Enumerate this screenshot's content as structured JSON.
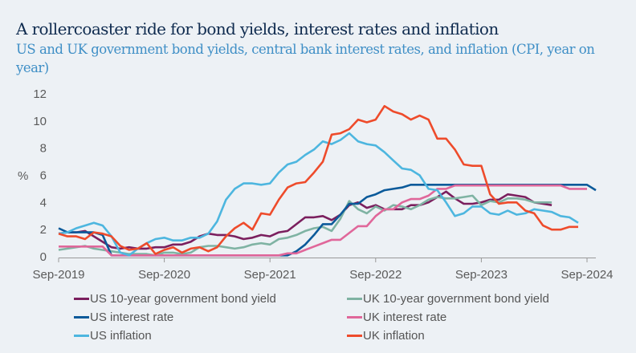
{
  "chart_data": {
    "type": "line",
    "title": "A rollercoaster ride for bond yields, interest rates and inflation",
    "subtitle": "US and UK government bond yields, central bank interest rates, and inflation (CPI, year on year)",
    "xlabel": "",
    "ylabel": "%",
    "ylim": [
      0,
      12
    ],
    "yticks": [
      "0",
      "2",
      "4",
      "6",
      "8",
      "10",
      "12"
    ],
    "xticks": [
      "Sep-2019",
      "Sep-2020",
      "Sep-2021",
      "Sep-2022",
      "Sep-2023",
      "Sep-2024"
    ],
    "x_start": "Sep-2019",
    "x_frequency": "monthly",
    "grid": false,
    "legend_position": "bottom",
    "series": [
      {
        "name": "US 10-year government bond yield",
        "color": "#7b1f5e",
        "values": [
          1.7,
          1.8,
          1.8,
          1.9,
          1.5,
          1.1,
          0.7,
          0.6,
          0.7,
          0.6,
          0.6,
          0.7,
          0.7,
          0.9,
          0.9,
          1.1,
          1.5,
          1.7,
          1.6,
          1.6,
          1.5,
          1.3,
          1.4,
          1.6,
          1.5,
          1.8,
          1.9,
          2.4,
          2.9,
          2.9,
          3.0,
          2.7,
          3.1,
          3.8,
          4.0,
          3.6,
          3.8,
          3.5,
          3.5,
          3.5,
          3.8,
          3.8,
          4.0,
          4.4,
          4.8,
          4.3,
          3.9,
          3.9,
          4.0,
          4.2,
          4.2,
          4.6,
          4.5,
          4.4,
          4.0,
          3.9,
          3.8
        ]
      },
      {
        "name": "UK 10-year government bond yield",
        "color": "#7fb3a3",
        "values": [
          0.5,
          0.6,
          0.7,
          0.8,
          0.6,
          0.5,
          0.4,
          0.3,
          0.2,
          0.2,
          0.2,
          0.1,
          0.3,
          0.3,
          0.2,
          0.3,
          0.7,
          0.8,
          0.8,
          0.7,
          0.6,
          0.7,
          0.9,
          1.0,
          0.9,
          1.3,
          1.4,
          1.6,
          1.9,
          2.1,
          2.2,
          1.9,
          2.8,
          4.1,
          3.5,
          3.2,
          3.7,
          3.4,
          3.8,
          3.7,
          3.5,
          3.8,
          4.2,
          4.4,
          4.3,
          4.3,
          4.4,
          4.5,
          3.8,
          4.1,
          4.0,
          4.3,
          4.3,
          4.2,
          4.0,
          4.0,
          4.0
        ]
      },
      {
        "name": "US interest rate",
        "color": "#0b5a9a",
        "values": [
          2.1,
          1.8,
          1.8,
          1.8,
          1.8,
          1.6,
          0.1,
          0.1,
          0.1,
          0.1,
          0.1,
          0.1,
          0.1,
          0.1,
          0.1,
          0.1,
          0.1,
          0.1,
          0.1,
          0.1,
          0.1,
          0.1,
          0.1,
          0.1,
          0.1,
          0.1,
          0.1,
          0.4,
          0.9,
          1.6,
          2.4,
          2.4,
          3.1,
          3.9,
          3.9,
          4.4,
          4.6,
          4.9,
          5.0,
          5.1,
          5.3,
          5.3,
          5.3,
          5.3,
          5.3,
          5.3,
          5.3,
          5.3,
          5.3,
          5.3,
          5.3,
          5.3,
          5.3,
          5.3,
          5.3,
          5.3,
          5.3,
          5.3,
          5.3,
          5.3,
          5.3,
          4.9
        ]
      },
      {
        "name": "UK interest rate",
        "color": "#e0679a",
        "values": [
          0.75,
          0.75,
          0.75,
          0.75,
          0.75,
          0.75,
          0.1,
          0.1,
          0.1,
          0.1,
          0.1,
          0.1,
          0.1,
          0.1,
          0.1,
          0.1,
          0.1,
          0.1,
          0.1,
          0.1,
          0.1,
          0.1,
          0.1,
          0.1,
          0.1,
          0.1,
          0.25,
          0.25,
          0.5,
          0.75,
          1.0,
          1.25,
          1.25,
          1.75,
          2.25,
          2.25,
          3.0,
          3.5,
          3.5,
          4.0,
          4.25,
          4.25,
          4.5,
          5.0,
          5.0,
          5.25,
          5.25,
          5.25,
          5.25,
          5.25,
          5.25,
          5.25,
          5.25,
          5.25,
          5.25,
          5.25,
          5.25,
          5.25,
          5.0,
          5.0,
          5.0
        ]
      },
      {
        "name": "US inflation",
        "color": "#4db6df",
        "values": [
          1.7,
          1.8,
          2.1,
          2.3,
          2.5,
          2.3,
          1.5,
          0.3,
          0.1,
          0.6,
          1.0,
          1.3,
          1.4,
          1.2,
          1.2,
          1.4,
          1.4,
          1.7,
          2.6,
          4.2,
          5.0,
          5.4,
          5.4,
          5.3,
          5.4,
          6.2,
          6.8,
          7.0,
          7.5,
          7.9,
          8.5,
          8.3,
          8.6,
          9.1,
          8.5,
          8.3,
          8.2,
          7.7,
          7.1,
          6.5,
          6.4,
          6.0,
          5.0,
          4.9,
          4.0,
          3.0,
          3.2,
          3.7,
          3.7,
          3.2,
          3.1,
          3.4,
          3.1,
          3.2,
          3.5,
          3.4,
          3.3,
          3.0,
          2.9,
          2.5
        ]
      },
      {
        "name": "UK inflation",
        "color": "#ee4b2b",
        "values": [
          1.7,
          1.5,
          1.5,
          1.3,
          1.8,
          1.7,
          1.5,
          0.8,
          0.5,
          0.6,
          1.0,
          0.2,
          0.5,
          0.7,
          0.3,
          0.6,
          0.7,
          0.4,
          0.7,
          1.5,
          2.1,
          2.5,
          2.0,
          3.2,
          3.1,
          4.2,
          5.1,
          5.4,
          5.5,
          6.2,
          7.0,
          9.0,
          9.1,
          9.4,
          10.1,
          9.9,
          10.1,
          11.1,
          10.7,
          10.5,
          10.1,
          10.4,
          10.1,
          8.7,
          8.7,
          7.9,
          6.8,
          6.7,
          6.7,
          4.6,
          3.9,
          4.0,
          4.0,
          3.4,
          3.2,
          2.3,
          2.0,
          2.0,
          2.2,
          2.2
        ]
      }
    ]
  }
}
